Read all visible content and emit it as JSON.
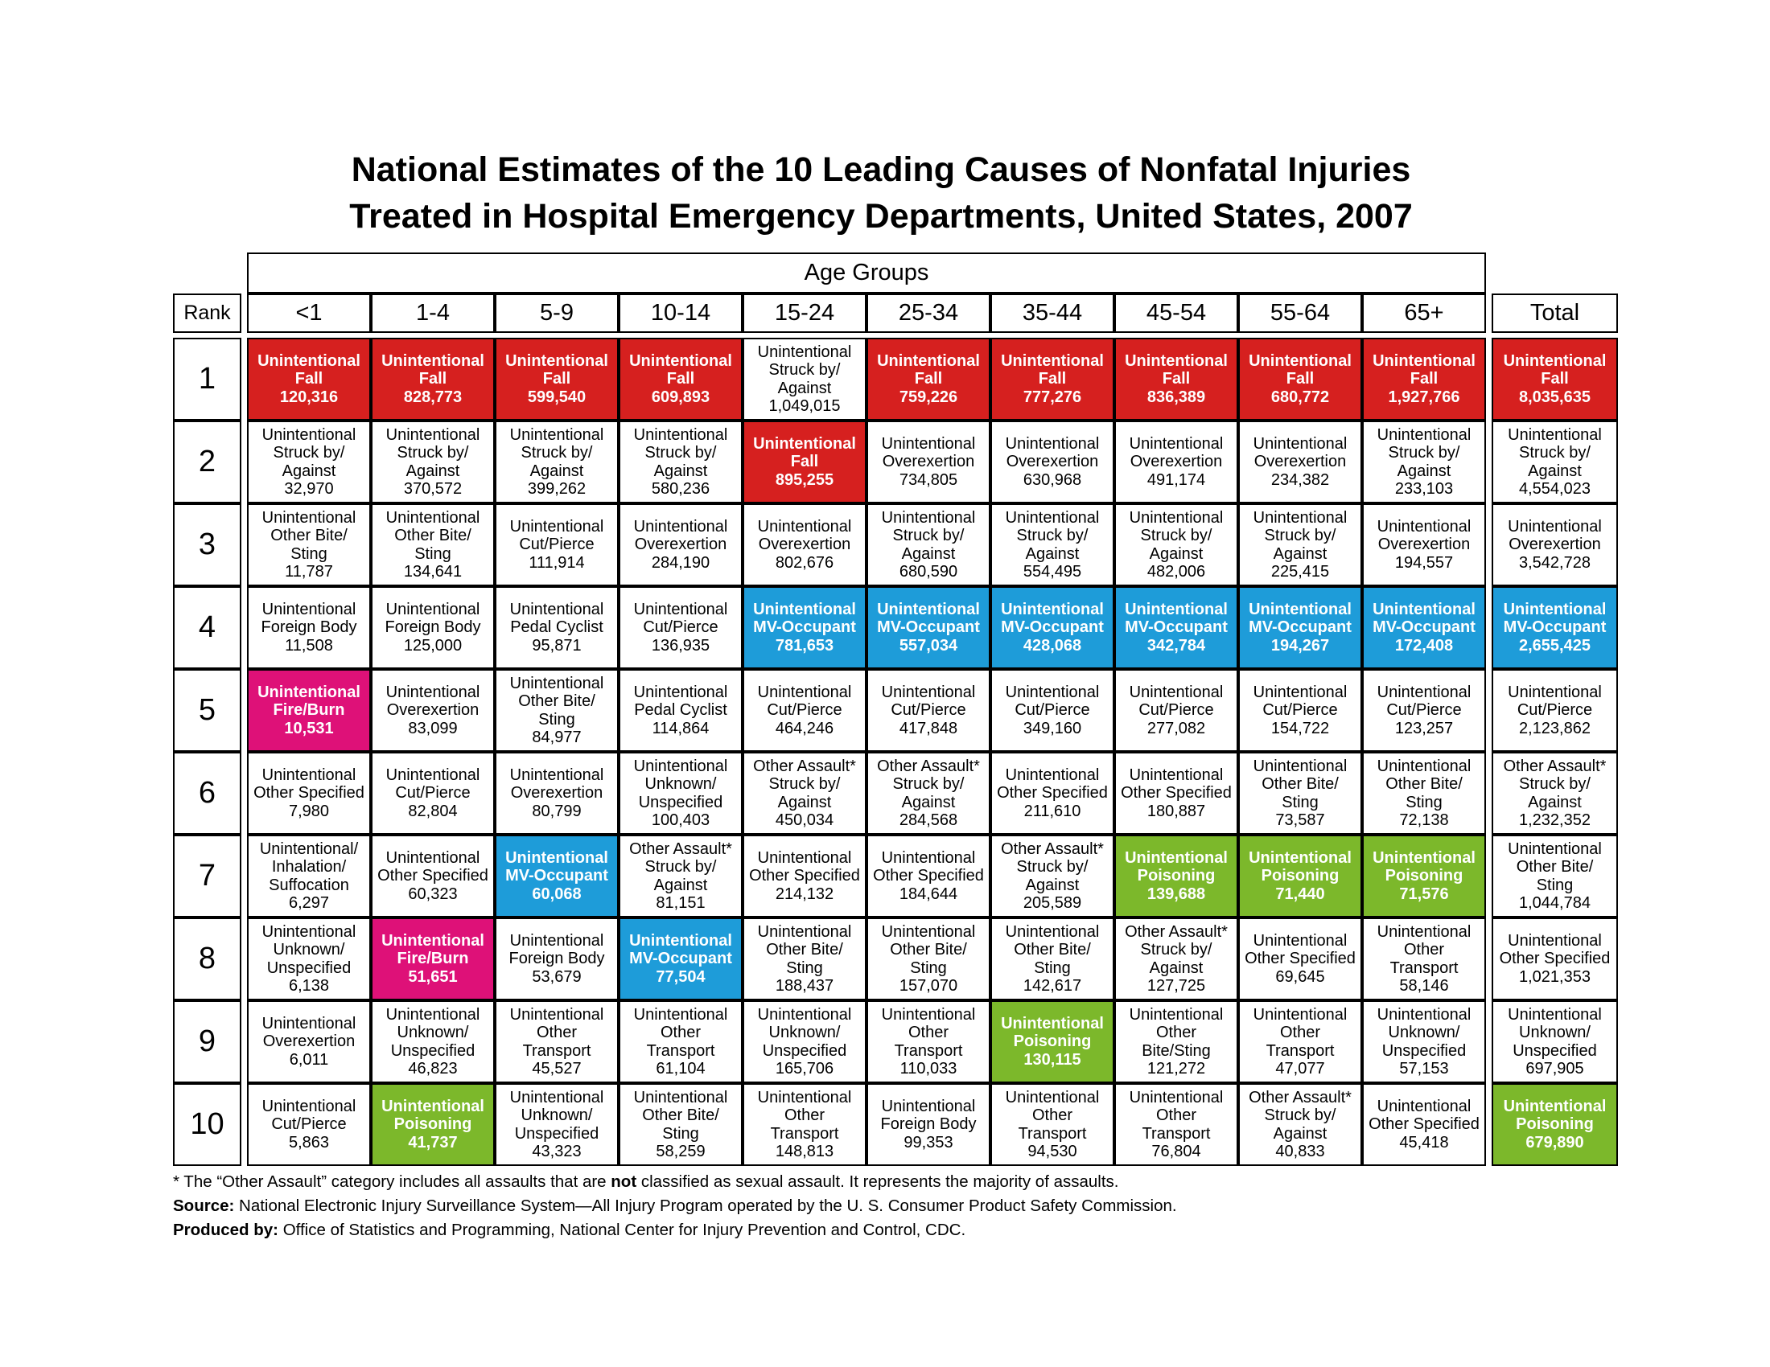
{
  "title": {
    "line1": "National Estimates of the 10 Leading Causes of Nonfatal Injuries",
    "line2": "Treated in Hospital Emergency Departments, United States, 2007"
  },
  "colors": {
    "fall": "#D6201F",
    "mv": "#1E9CD9",
    "poisoning": "#7CB82B",
    "fireburn": "#DE1178",
    "plain": "#FFFFFF"
  },
  "chart_data": {
    "type": "table",
    "title": "National Estimates of the 10 Leading Causes of Nonfatal Injuries Treated in Hospital Emergency Departments, United States, 2007",
    "group_header": "Age Groups",
    "rank_label": "Rank",
    "age_columns": [
      "<1",
      "1-4",
      "5-9",
      "10-14",
      "15-24",
      "25-34",
      "35-44",
      "45-54",
      "55-64",
      "65+"
    ],
    "total_label": "Total",
    "color_legend": {
      "fall": "Unintentional Fall",
      "mv": "Unintentional MV-Occupant",
      "poisoning": "Unintentional Poisoning",
      "fireburn": "Unintentional Fire/Burn"
    },
    "rows": [
      {
        "rank": "1",
        "cells": [
          {
            "cause": "Unintentional Fall",
            "value": "120,316",
            "color": "fall"
          },
          {
            "cause": "Unintentional Fall",
            "value": "828,773",
            "color": "fall"
          },
          {
            "cause": "Unintentional Fall",
            "value": "599,540",
            "color": "fall"
          },
          {
            "cause": "Unintentional Fall",
            "value": "609,893",
            "color": "fall"
          },
          {
            "cause": "Unintentional Struck by/ Against",
            "value": "1,049,015",
            "color": "plain"
          },
          {
            "cause": "Unintentional Fall",
            "value": "759,226",
            "color": "fall"
          },
          {
            "cause": "Unintentional Fall",
            "value": "777,276",
            "color": "fall"
          },
          {
            "cause": "Unintentional Fall",
            "value": "836,389",
            "color": "fall"
          },
          {
            "cause": "Unintentional Fall",
            "value": "680,772",
            "color": "fall"
          },
          {
            "cause": "Unintentional Fall",
            "value": "1,927,766",
            "color": "fall"
          },
          {
            "cause": "Unintentional Fall",
            "value": "8,035,635",
            "color": "fall"
          }
        ]
      },
      {
        "rank": "2",
        "cells": [
          {
            "cause": "Unintentional Struck by/ Against",
            "value": "32,970",
            "color": "plain"
          },
          {
            "cause": "Unintentional Struck by/ Against",
            "value": "370,572",
            "color": "plain"
          },
          {
            "cause": "Unintentional Struck by/ Against",
            "value": "399,262",
            "color": "plain"
          },
          {
            "cause": "Unintentional Struck by/ Against",
            "value": "580,236",
            "color": "plain"
          },
          {
            "cause": "Unintentional Fall",
            "value": "895,255",
            "color": "fall"
          },
          {
            "cause": "Unintentional Overexertion",
            "value": "734,805",
            "color": "plain"
          },
          {
            "cause": "Unintentional Overexertion",
            "value": "630,968",
            "color": "plain"
          },
          {
            "cause": "Unintentional Overexertion",
            "value": "491,174",
            "color": "plain"
          },
          {
            "cause": "Unintentional Overexertion",
            "value": "234,382",
            "color": "plain"
          },
          {
            "cause": "Unintentional Struck by/ Against",
            "value": "233,103",
            "color": "plain"
          },
          {
            "cause": "Unintentional Struck by/ Against",
            "value": "4,554,023",
            "color": "plain"
          }
        ]
      },
      {
        "rank": "3",
        "cells": [
          {
            "cause": "Unintentional Other Bite/ Sting",
            "value": "11,787",
            "color": "plain"
          },
          {
            "cause": "Unintentional Other Bite/ Sting",
            "value": "134,641",
            "color": "plain"
          },
          {
            "cause": "Unintentional Cut/Pierce",
            "value": "111,914",
            "color": "plain"
          },
          {
            "cause": "Unintentional Overexertion",
            "value": "284,190",
            "color": "plain"
          },
          {
            "cause": "Unintentional Overexertion",
            "value": "802,676",
            "color": "plain"
          },
          {
            "cause": "Unintentional Struck by/ Against",
            "value": "680,590",
            "color": "plain"
          },
          {
            "cause": "Unintentional Struck by/ Against",
            "value": "554,495",
            "color": "plain"
          },
          {
            "cause": "Unintentional Struck by/ Against",
            "value": "482,006",
            "color": "plain"
          },
          {
            "cause": "Unintentional Struck by/ Against",
            "value": "225,415",
            "color": "plain"
          },
          {
            "cause": "Unintentional Overexertion",
            "value": "194,557",
            "color": "plain"
          },
          {
            "cause": "Unintentional Overexertion",
            "value": "3,542,728",
            "color": "plain"
          }
        ]
      },
      {
        "rank": "4",
        "cells": [
          {
            "cause": "Unintentional Foreign Body",
            "value": "11,508",
            "color": "plain"
          },
          {
            "cause": "Unintentional Foreign Body",
            "value": "125,000",
            "color": "plain"
          },
          {
            "cause": "Unintentional Pedal Cyclist",
            "value": "95,871",
            "color": "plain"
          },
          {
            "cause": "Unintentional Cut/Pierce",
            "value": "136,935",
            "color": "plain"
          },
          {
            "cause": "Unintentional MV-Occupant",
            "value": "781,653",
            "color": "mv"
          },
          {
            "cause": "Unintentional MV-Occupant",
            "value": "557,034",
            "color": "mv"
          },
          {
            "cause": "Unintentional MV-Occupant",
            "value": "428,068",
            "color": "mv"
          },
          {
            "cause": "Unintentional MV-Occupant",
            "value": "342,784",
            "color": "mv"
          },
          {
            "cause": "Unintentional MV-Occupant",
            "value": "194,267",
            "color": "mv"
          },
          {
            "cause": "Unintentional MV-Occupant",
            "value": "172,408",
            "color": "mv"
          },
          {
            "cause": "Unintentional MV-Occupant",
            "value": "2,655,425",
            "color": "mv"
          }
        ]
      },
      {
        "rank": "5",
        "cells": [
          {
            "cause": "Unintentional Fire/Burn",
            "value": "10,531",
            "color": "fireburn"
          },
          {
            "cause": "Unintentional Overexertion",
            "value": "83,099",
            "color": "plain"
          },
          {
            "cause": "Unintentional Other Bite/ Sting",
            "value": "84,977",
            "color": "plain"
          },
          {
            "cause": "Unintentional Pedal Cyclist",
            "value": "114,864",
            "color": "plain"
          },
          {
            "cause": "Unintentional Cut/Pierce",
            "value": "464,246",
            "color": "plain"
          },
          {
            "cause": "Unintentional Cut/Pierce",
            "value": "417,848",
            "color": "plain"
          },
          {
            "cause": "Unintentional Cut/Pierce",
            "value": "349,160",
            "color": "plain"
          },
          {
            "cause": "Unintentional Cut/Pierce",
            "value": "277,082",
            "color": "plain"
          },
          {
            "cause": "Unintentional Cut/Pierce",
            "value": "154,722",
            "color": "plain"
          },
          {
            "cause": "Unintentional Cut/Pierce",
            "value": "123,257",
            "color": "plain"
          },
          {
            "cause": "Unintentional Cut/Pierce",
            "value": "2,123,862",
            "color": "plain"
          }
        ]
      },
      {
        "rank": "6",
        "cells": [
          {
            "cause": "Unintentional Other Specified",
            "value": "7,980",
            "color": "plain"
          },
          {
            "cause": "Unintentional Cut/Pierce",
            "value": "82,804",
            "color": "plain"
          },
          {
            "cause": "Unintentional Overexertion",
            "value": "80,799",
            "color": "plain"
          },
          {
            "cause": "Unintentional Unknown/ Unspecified",
            "value": "100,403",
            "color": "plain"
          },
          {
            "cause": "Other Assault* Struck by/ Against",
            "value": "450,034",
            "color": "plain"
          },
          {
            "cause": "Other Assault* Struck by/ Against",
            "value": "284,568",
            "color": "plain"
          },
          {
            "cause": "Unintentional Other Specified",
            "value": "211,610",
            "color": "plain"
          },
          {
            "cause": "Unintentional Other Specified",
            "value": "180,887",
            "color": "plain"
          },
          {
            "cause": "Unintentional Other Bite/ Sting",
            "value": "73,587",
            "color": "plain"
          },
          {
            "cause": "Unintentional Other Bite/ Sting",
            "value": "72,138",
            "color": "plain"
          },
          {
            "cause": "Other Assault* Struck by/ Against",
            "value": "1,232,352",
            "color": "plain"
          }
        ]
      },
      {
        "rank": "7",
        "cells": [
          {
            "cause": "Unintentional/ Inhalation/ Suffocation",
            "value": "6,297",
            "color": "plain"
          },
          {
            "cause": "Unintentional Other Specified",
            "value": "60,323",
            "color": "plain"
          },
          {
            "cause": "Unintentional MV-Occupant",
            "value": "60,068",
            "color": "mv"
          },
          {
            "cause": "Other Assault* Struck by/ Against",
            "value": "81,151",
            "color": "plain"
          },
          {
            "cause": "Unintentional Other Specified",
            "value": "214,132",
            "color": "plain"
          },
          {
            "cause": "Unintentional Other Specified",
            "value": "184,644",
            "color": "plain"
          },
          {
            "cause": "Other Assault* Struck by/ Against",
            "value": "205,589",
            "color": "plain"
          },
          {
            "cause": "Unintentional Poisoning",
            "value": "139,688",
            "color": "poisoning"
          },
          {
            "cause": "Unintentional Poisoning",
            "value": "71,440",
            "color": "poisoning"
          },
          {
            "cause": "Unintentional Poisoning",
            "value": "71,576",
            "color": "poisoning"
          },
          {
            "cause": "Unintentional Other Bite/ Sting",
            "value": "1,044,784",
            "color": "plain"
          }
        ]
      },
      {
        "rank": "8",
        "cells": [
          {
            "cause": "Unintentional Unknown/ Unspecified",
            "value": "6,138",
            "color": "plain"
          },
          {
            "cause": "Unintentional Fire/Burn",
            "value": "51,651",
            "color": "fireburn"
          },
          {
            "cause": "Unintentional Foreign Body",
            "value": "53,679",
            "color": "plain"
          },
          {
            "cause": "Unintentional MV-Occupant",
            "value": "77,504",
            "color": "mv"
          },
          {
            "cause": "Unintentional Other Bite/ Sting",
            "value": "188,437",
            "color": "plain"
          },
          {
            "cause": "Unintentional Other Bite/ Sting",
            "value": "157,070",
            "color": "plain"
          },
          {
            "cause": "Unintentional Other Bite/ Sting",
            "value": "142,617",
            "color": "plain"
          },
          {
            "cause": "Other Assault* Struck by/ Against",
            "value": "127,725",
            "color": "plain"
          },
          {
            "cause": "Unintentional Other Specified",
            "value": "69,645",
            "color": "plain"
          },
          {
            "cause": "Unintentional Other Transport",
            "value": "58,146",
            "color": "plain"
          },
          {
            "cause": "Unintentional Other Specified",
            "value": "1,021,353",
            "color": "plain"
          }
        ]
      },
      {
        "rank": "9",
        "cells": [
          {
            "cause": "Unintentional Overexertion",
            "value": "6,011",
            "color": "plain"
          },
          {
            "cause": "Unintentional Unknown/ Unspecified",
            "value": "46,823",
            "color": "plain"
          },
          {
            "cause": "Unintentional Other Transport",
            "value": "45,527",
            "color": "plain"
          },
          {
            "cause": "Unintentional Other Transport",
            "value": "61,104",
            "color": "plain"
          },
          {
            "cause": "Unintentional Unknown/ Unspecified",
            "value": "165,706",
            "color": "plain"
          },
          {
            "cause": "Unintentional Other Transport",
            "value": "110,033",
            "color": "plain"
          },
          {
            "cause": "Unintentional Poisoning",
            "value": "130,115",
            "color": "poisoning"
          },
          {
            "cause": "Unintentional Other Bite/Sting",
            "value": "121,272",
            "color": "plain"
          },
          {
            "cause": "Unintentional Other Transport",
            "value": "47,077",
            "color": "plain"
          },
          {
            "cause": "Unintentional Unknown/ Unspecified",
            "value": "57,153",
            "color": "plain"
          },
          {
            "cause": "Unintentional Unknown/ Unspecified",
            "value": "697,905",
            "color": "plain"
          }
        ]
      },
      {
        "rank": "10",
        "cells": [
          {
            "cause": "Unintentional Cut/Pierce",
            "value": "5,863",
            "color": "plain"
          },
          {
            "cause": "Unintentional Poisoning",
            "value": "41,737",
            "color": "poisoning"
          },
          {
            "cause": "Unintentional Unknown/ Unspecified",
            "value": "43,323",
            "color": "plain"
          },
          {
            "cause": "Unintentional Other Bite/ Sting",
            "value": "58,259",
            "color": "plain"
          },
          {
            "cause": "Unintentional Other Transport",
            "value": "148,813",
            "color": "plain"
          },
          {
            "cause": "Unintentional Foreign Body",
            "value": "99,353",
            "color": "plain"
          },
          {
            "cause": "Unintentional Other Transport",
            "value": "94,530",
            "color": "plain"
          },
          {
            "cause": "Unintentional Other Transport",
            "value": "76,804",
            "color": "plain"
          },
          {
            "cause": "Other Assault* Struck by/ Against",
            "value": "40,833",
            "color": "plain"
          },
          {
            "cause": "Unintentional Other Specified",
            "value": "45,418",
            "color": "plain"
          },
          {
            "cause": "Unintentional Poisoning",
            "value": "679,890",
            "color": "poisoning"
          }
        ]
      }
    ]
  },
  "footnotes": {
    "note1_prefix": "* The “Other Assault” category includes all assaults that are ",
    "note1_bold": "not",
    "note1_suffix": " classified as sexual assault.  It represents the majority of assaults.",
    "source_label": "Source:",
    "source_text": "  National Electronic Injury Surveillance System—All Injury Program operated by the U. S. Consumer Product Safety Commission.",
    "produced_label": "Produced by:",
    "produced_text": " Office of Statistics and Programming, National Center for Injury Prevention and Control, CDC."
  }
}
